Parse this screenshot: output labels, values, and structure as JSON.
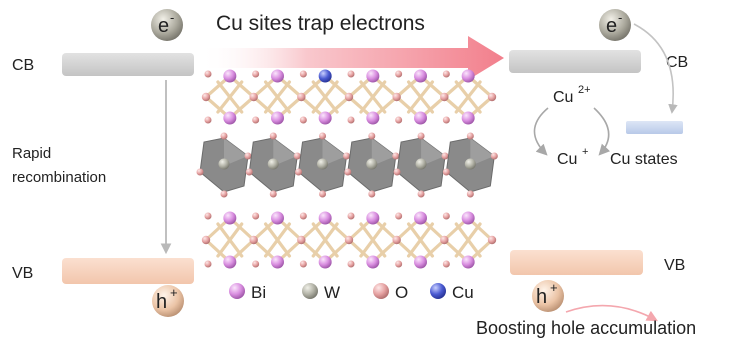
{
  "title": "Cu sites trap electrons",
  "left": {
    "cb": "CB",
    "vb": "VB",
    "recombination": [
      "Rapid",
      "recombination"
    ],
    "electron": "e",
    "electron_sup": "-",
    "hole": "h",
    "hole_sup": "+"
  },
  "right": {
    "cb": "CB",
    "vb": "VB",
    "cu2": "Cu",
    "cu2_sup": "2+",
    "cu1": "Cu",
    "cu1_sup": "+",
    "cu_states": "Cu states",
    "electron": "e",
    "electron_sup": "-",
    "hole": "h",
    "hole_sup": "+",
    "boost": "Boosting hole accumulation"
  },
  "legend": [
    {
      "label": "Bi",
      "color": "#d98ee0"
    },
    {
      "label": "W",
      "color": "#b2b2a6"
    },
    {
      "label": "O",
      "color": "#e6a2a2"
    },
    {
      "label": "Cu",
      "color": "#4b5bd2"
    }
  ],
  "colors": {
    "cb_band": "#d6d6d6",
    "vb_band": "#f6d3bd",
    "cu_band": "#c9d7ef",
    "arrow_main": "#f38d98",
    "octahedra": "#8a8a8a",
    "bond": "#e8cfa9"
  }
}
